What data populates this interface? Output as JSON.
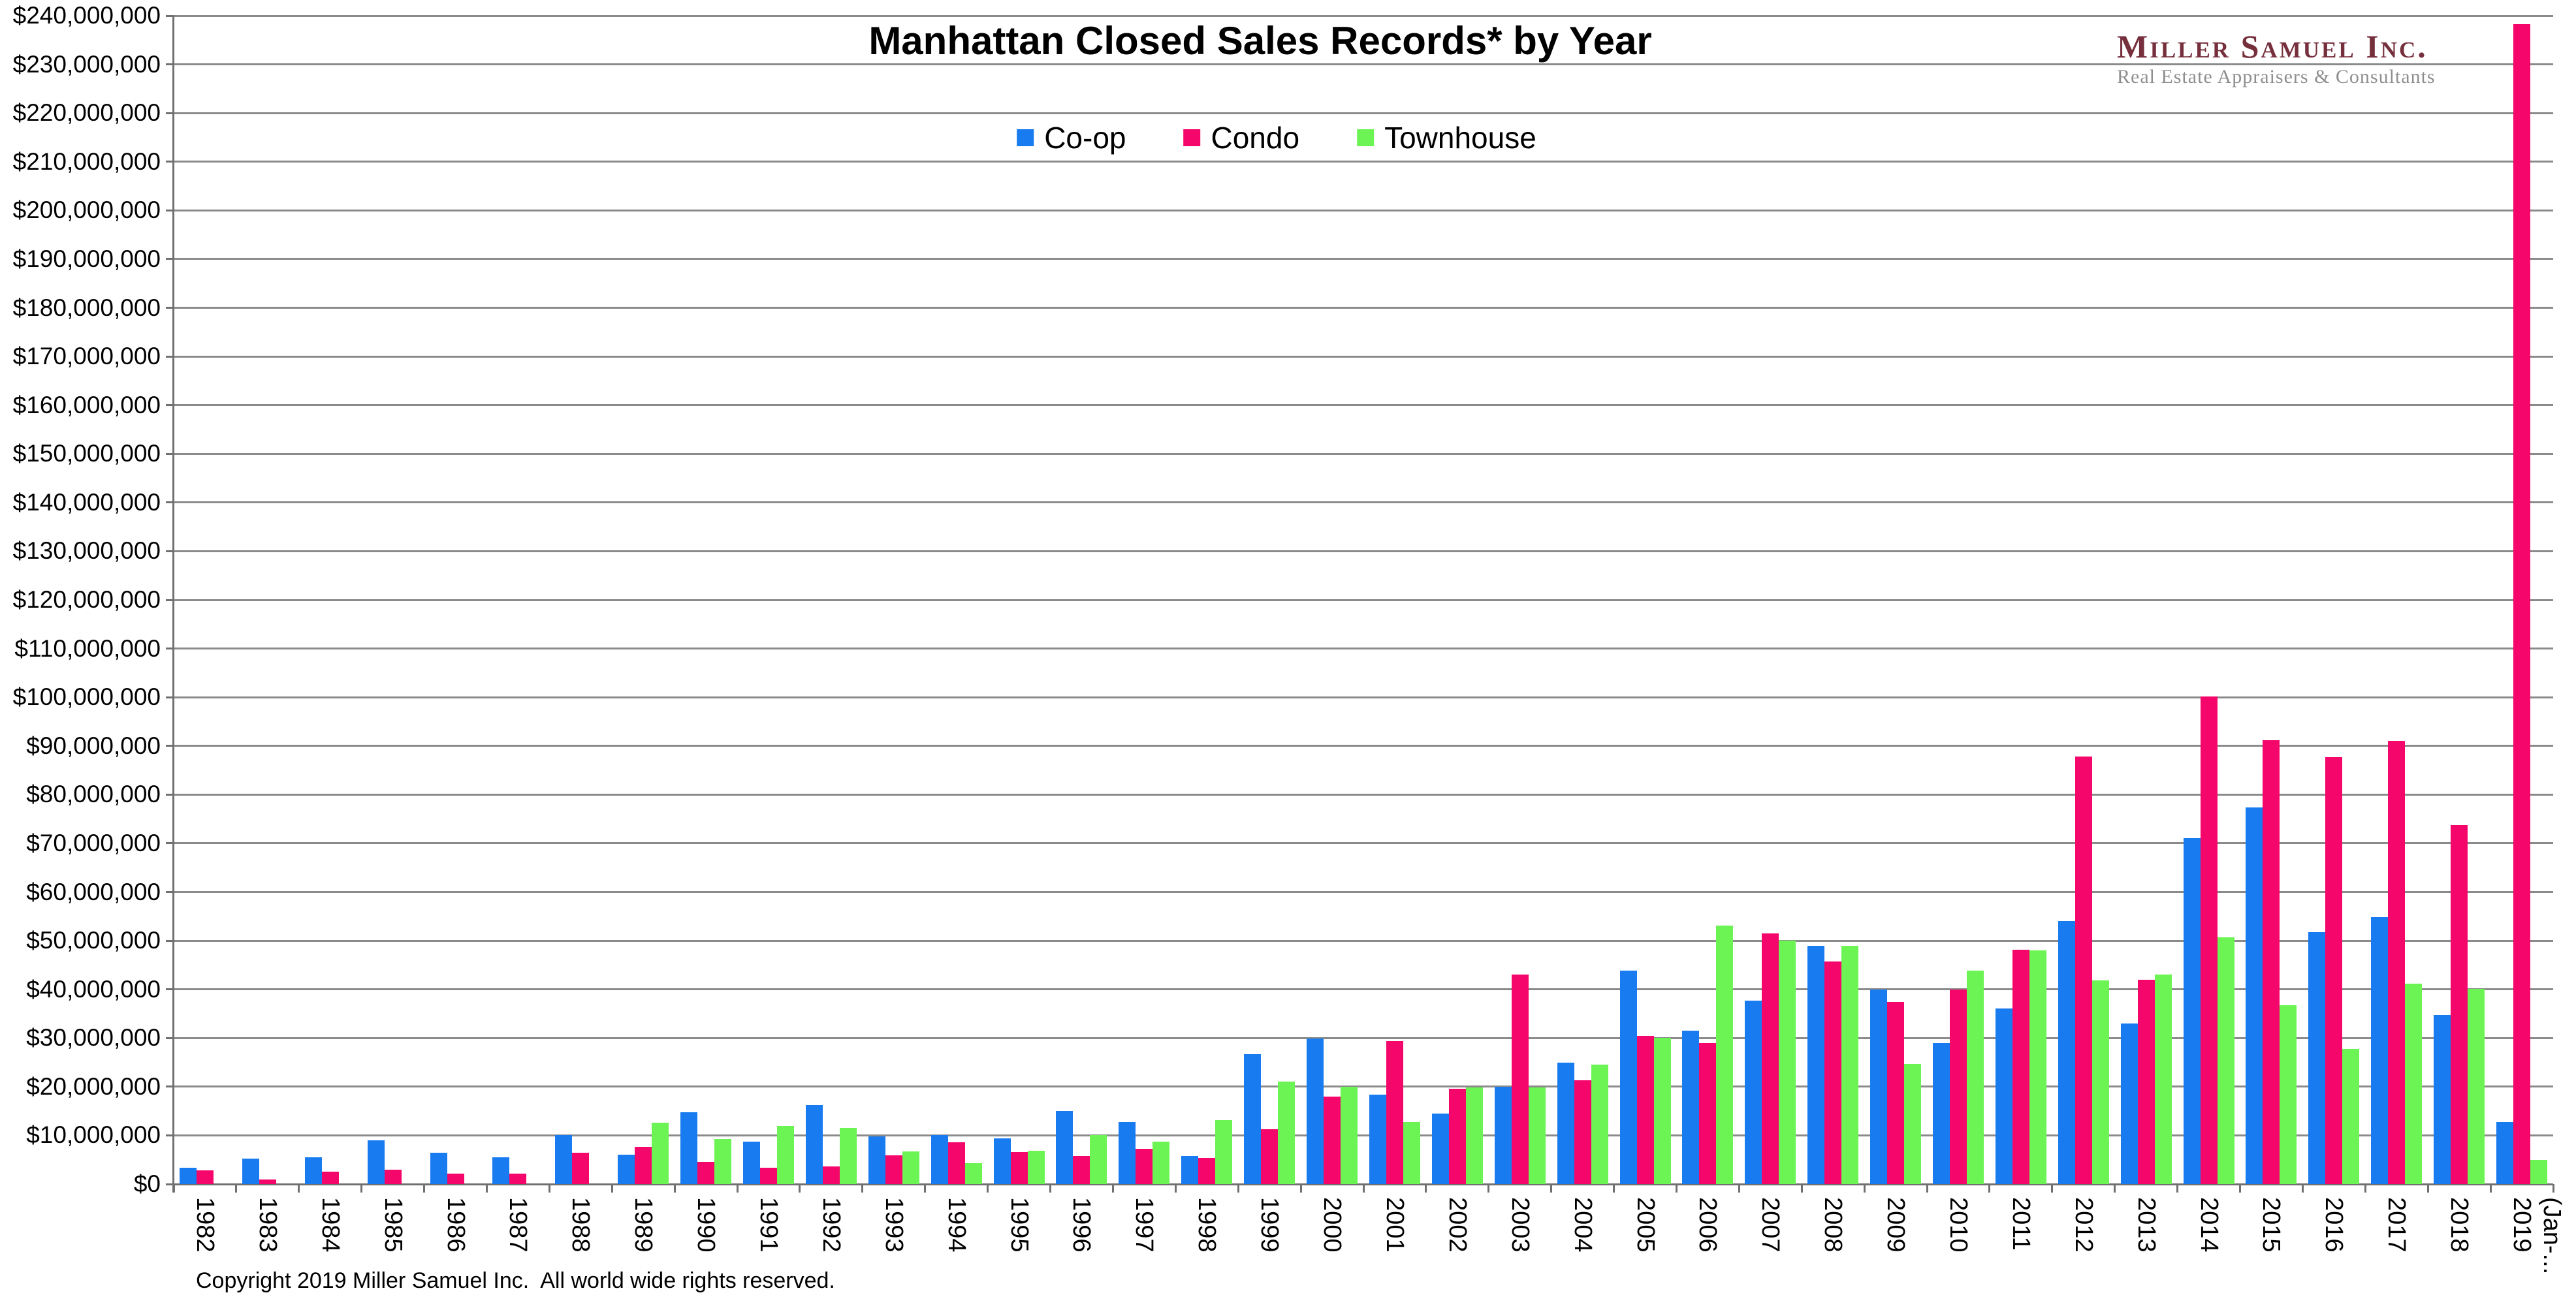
{
  "title": "Manhattan Closed Sales Records* by Year",
  "copyright": "Copyright 2019 Miller Samuel Inc.  All world wide rights reserved.",
  "logo": {
    "name": "Miller Samuel Inc.",
    "tagline": "Real Estate Appraisers & Consultants",
    "name_color": "#76303d",
    "tagline_color": "#8e8e8e"
  },
  "colors": {
    "coop": "#187BF0",
    "condo": "#F5066B",
    "townhouse": "#6BF453",
    "gridline": "#8a8a8a",
    "axis": "#707070"
  },
  "chart_data": {
    "type": "bar",
    "title": "Manhattan Closed Sales Records* by Year",
    "legend_position": "top-center",
    "grid": true,
    "y_axis": {
      "min": 0,
      "max": 240000000,
      "step": 10000000,
      "tick_format": "$#,##0"
    },
    "categories": [
      "1982",
      "1983",
      "1984",
      "1985",
      "1986",
      "1987",
      "1988",
      "1989",
      "1990",
      "1991",
      "1992",
      "1993",
      "1994",
      "1995",
      "1996",
      "1997",
      "1998",
      "1999",
      "2000",
      "2001",
      "2002",
      "2003",
      "2004",
      "2005",
      "2006",
      "2007",
      "2008",
      "2009",
      "2010",
      "2011",
      "2012",
      "2013",
      "2014",
      "2015",
      "2016",
      "2017",
      "2018",
      "2019\n(Jan-..."
    ],
    "series": [
      {
        "name": "Co-op",
        "color": "#187BF0",
        "values": [
          3300000,
          5200000,
          5500000,
          9000000,
          6400000,
          5500000,
          10000000,
          6100000,
          14800000,
          8700000,
          16200000,
          9800000,
          10000000,
          9400000,
          15000000,
          12800000,
          5700000,
          26700000,
          29900000,
          18400000,
          14500000,
          20000000,
          24900000,
          43900000,
          31500000,
          37700000,
          48900000,
          39900000,
          28900000,
          36100000,
          54000000,
          33000000,
          71000000,
          77300000,
          51800000,
          54900000,
          34700000,
          12800000
        ]
      },
      {
        "name": "Condo",
        "color": "#F5066B",
        "values": [
          2800000,
          1000000,
          2500000,
          3000000,
          2100000,
          2100000,
          6400000,
          7600000,
          4500000,
          3400000,
          3600000,
          5900000,
          8600000,
          6600000,
          5700000,
          7200000,
          5400000,
          11200000,
          17900000,
          29300000,
          19600000,
          43000000,
          21300000,
          30400000,
          28900000,
          51500000,
          45700000,
          37400000,
          40000000,
          48100000,
          87800000,
          41900000,
          100200000,
          91200000,
          87700000,
          91000000,
          73700000,
          238200000
        ]
      },
      {
        "name": "Townhouse",
        "color": "#6BF453",
        "values": [
          null,
          null,
          null,
          null,
          null,
          null,
          null,
          12600000,
          9300000,
          12000000,
          11500000,
          6700000,
          4300000,
          6900000,
          10000000,
          8700000,
          13200000,
          21000000,
          20000000,
          12700000,
          19900000,
          19900000,
          24500000,
          30000000,
          53100000,
          50000000,
          49000000,
          24700000,
          43900000,
          48000000,
          41800000,
          43000000,
          50700000,
          36800000,
          27700000,
          41100000,
          40100000,
          4900000
        ]
      }
    ]
  }
}
